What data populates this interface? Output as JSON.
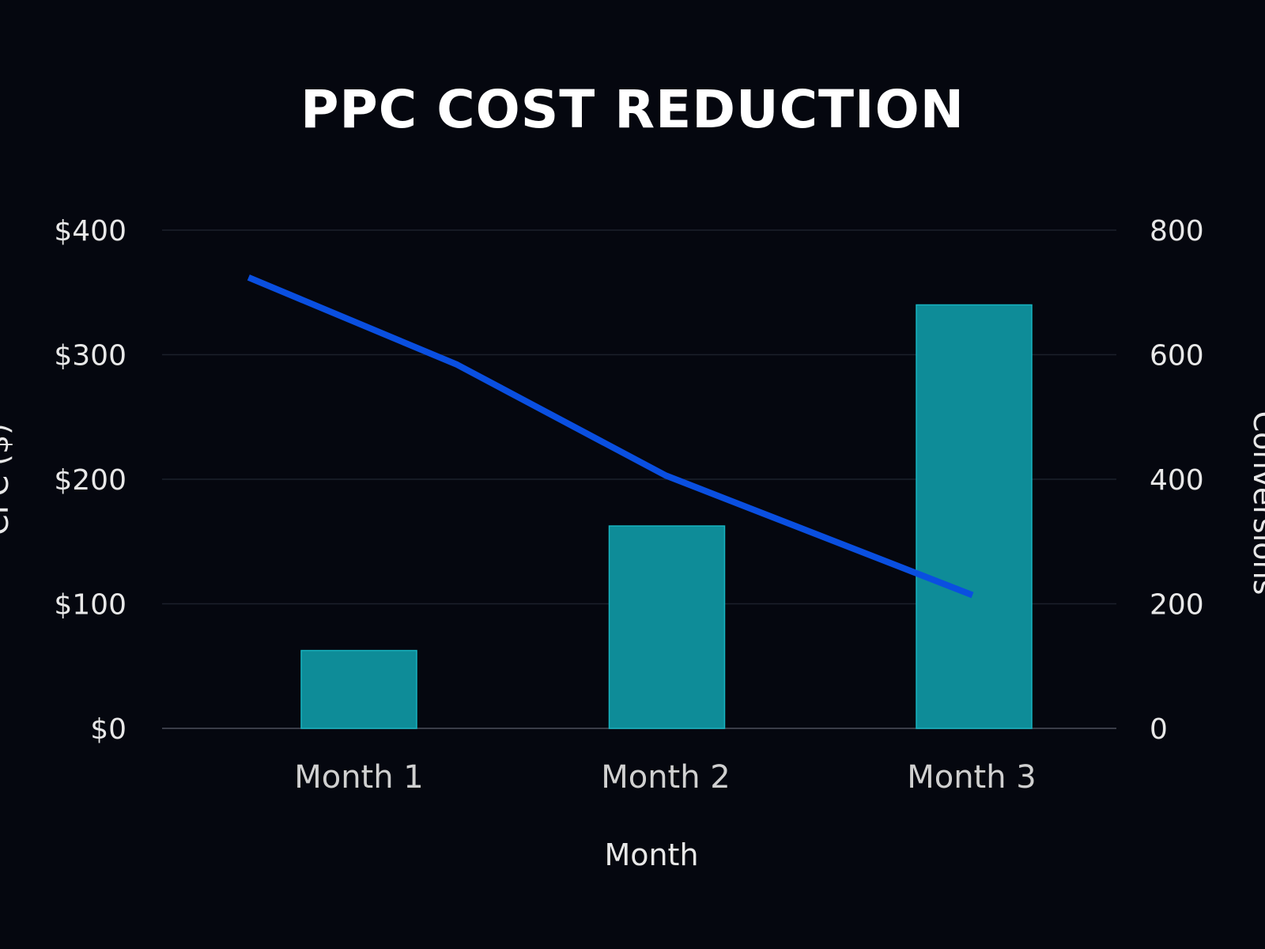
{
  "chart_data": {
    "type": "bar+line",
    "title": "PPC COST REDUCTION",
    "xlabel": "Month",
    "ylabel_left": "CPC ($)",
    "ylabel_right": "Conversions",
    "categories": [
      "Month 1",
      "Month 2",
      "Month 3"
    ],
    "y_left": {
      "range": [
        0,
        400
      ],
      "ticks": [
        "$0",
        "$100",
        "$200",
        "$300",
        "$400"
      ],
      "tick_values": [
        0,
        100,
        200,
        300,
        400
      ]
    },
    "y_right": {
      "range": [
        0,
        800
      ],
      "ticks": [
        "0",
        "200",
        "400",
        "600",
        "800"
      ],
      "tick_values": [
        0,
        200,
        400,
        600,
        800
      ]
    },
    "grid": true,
    "series": [
      {
        "type": "bar",
        "axis": "right",
        "color": "#0e8c98",
        "values": [
          125,
          325,
          680
        ]
      },
      {
        "type": "line",
        "axis": "left",
        "color": "#0a4fe0",
        "x": [
          0.64,
          1.32,
          2.0,
          3.0
        ],
        "values": [
          362,
          292,
          203,
          107
        ]
      }
    ]
  }
}
